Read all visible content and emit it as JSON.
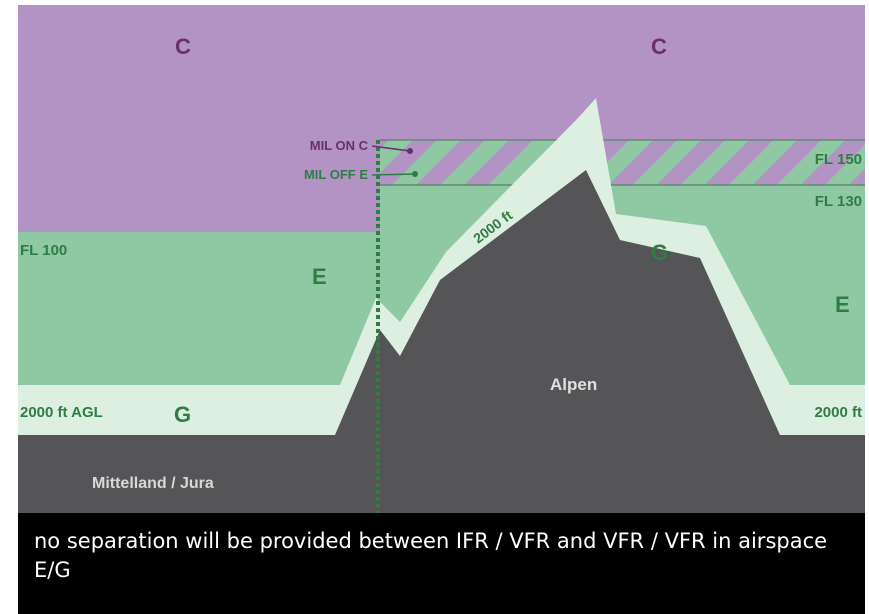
{
  "diagram": {
    "labels": {
      "c_left": "C",
      "c_right": "C",
      "mil_on_c": "MIL ON C",
      "mil_off_e": "MIL OFF E",
      "fl150": "FL 150",
      "fl130": "FL 130",
      "fl100": "FL 100",
      "e_left": "E",
      "e_right": "E",
      "g_left": "G",
      "g_right": "G",
      "slope": "2000 ft",
      "alpen": "Alpen",
      "agl_left": "2000 ft AGL",
      "agl_right": "2000 ft",
      "mittelland": "Mittelland / Jura"
    },
    "caption": "no separation will be provided between IFR / VFR and VFR / VFR in airspace E/G"
  }
}
